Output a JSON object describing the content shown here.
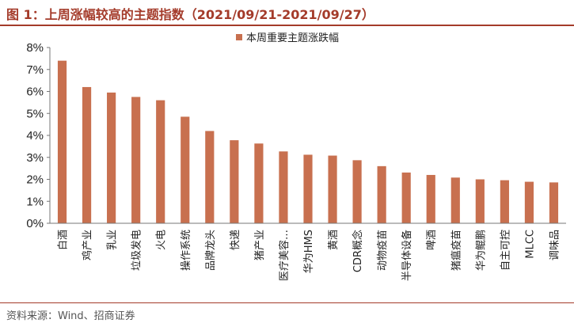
{
  "header": {
    "title": "图 1：上周涨幅较高的主题指数（2021/09/21-2021/09/27）"
  },
  "footer": {
    "source": "资料来源：Wind、招商证券"
  },
  "colors": {
    "bar": "#c8704f",
    "accent": "#a43b2a"
  },
  "chart_data": {
    "type": "bar",
    "title": "",
    "xlabel": "",
    "ylabel": "",
    "ylim": [
      0,
      8
    ],
    "yticks": [
      "0%",
      "1%",
      "2%",
      "3%",
      "4%",
      "5%",
      "6%",
      "7%",
      "8%"
    ],
    "legend_position": "top-center",
    "grid": false,
    "categories": [
      "白酒",
      "鸡产业",
      "乳业",
      "垃圾发电",
      "火电",
      "操作系统",
      "品牌龙头",
      "快递",
      "猪产业",
      "医疗美容…",
      "华为HMS",
      "黄酒",
      "CDR概念",
      "动物疫苗",
      "半导体设备",
      "啤酒",
      "猪瘟疫苗",
      "华为鲲鹏",
      "自主可控",
      "MLCC",
      "调味品"
    ],
    "series": [
      {
        "name": "本周重要主题涨跌幅",
        "values": [
          7.4,
          6.2,
          5.95,
          5.75,
          5.6,
          4.85,
          4.2,
          3.78,
          3.63,
          3.27,
          3.12,
          3.08,
          2.87,
          2.6,
          2.31,
          2.2,
          2.08,
          2.0,
          1.96,
          1.89,
          1.86
        ]
      }
    ]
  }
}
